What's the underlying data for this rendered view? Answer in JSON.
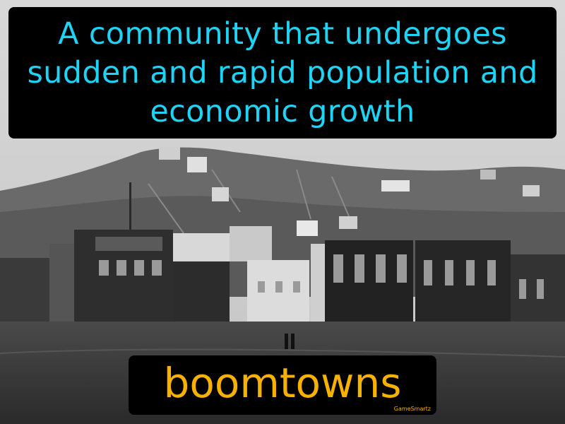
{
  "definition": "A community that undergoes sudden and rapid population and economic growth",
  "term": "boomtowns",
  "brand": "GameSmartz",
  "colors": {
    "definition_text": "#1fd3f5",
    "term_text": "#f7b100",
    "box_background": "#000000"
  }
}
